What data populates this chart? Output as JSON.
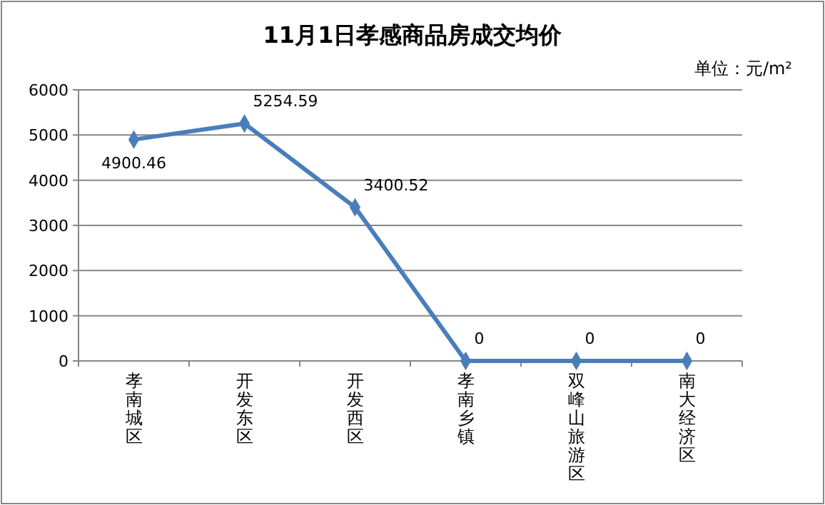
{
  "chart_data": {
    "type": "line",
    "title": "11月1日孝感商品房成交均价",
    "annotations": [
      "单位：元/m²"
    ],
    "categories": [
      "孝南城区",
      "开发东区",
      "开发西区",
      "孝南乡镇",
      "双峰山旅游区",
      "南大经济区"
    ],
    "series": [
      {
        "color": "#4a7ebb",
        "values": [
          4900.46,
          5254.59,
          3400.52,
          0,
          0,
          0
        ]
      }
    ],
    "ylim": [
      0,
      6000
    ],
    "yticks": [
      0,
      1000,
      2000,
      3000,
      4000,
      5000,
      6000
    ],
    "grid": "y",
    "marker": "diamond",
    "data_labels": true
  }
}
